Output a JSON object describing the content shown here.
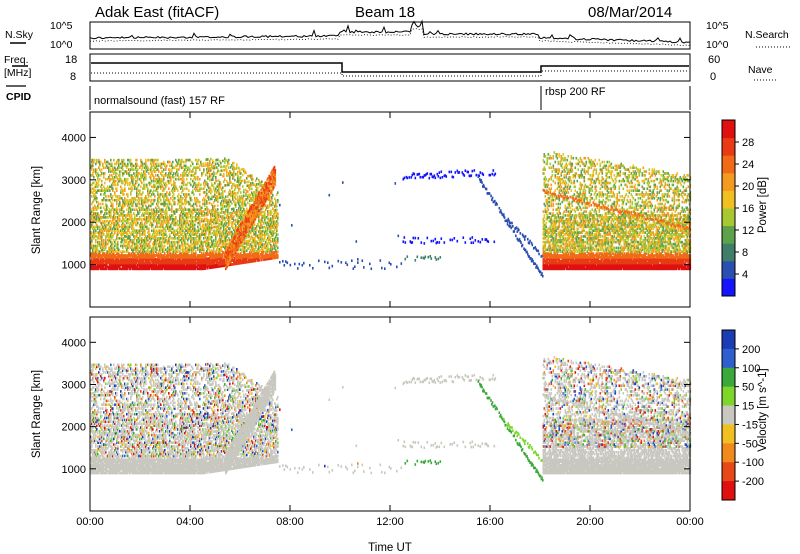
{
  "header": {
    "station": "Adak East (fitACF)",
    "beam": "Beam 18",
    "date": "08/Mar/2014"
  },
  "noise_panel": {
    "left_label": "N.Sky",
    "right_label": "N.Search",
    "left_ticks": [
      "10^5",
      "10^0"
    ],
    "right_ticks": [
      "10^5",
      "10^0"
    ]
  },
  "freq_panel": {
    "left_label_line1": "Freq.",
    "left_label_line2": "[MHz]",
    "right_label": "Nave",
    "left_ticks": [
      "18",
      "8"
    ],
    "right_ticks": [
      "60",
      "0"
    ]
  },
  "cpid_panel": {
    "label": "CPID",
    "mode1": "normalsound (fast) 157 RF",
    "mode2": "rbsp 200 RF"
  },
  "chart_data": [
    {
      "type": "heatmap",
      "ylabel": "Slant Range [km]",
      "y_ticks": [
        "1000",
        "2000",
        "3000",
        "4000"
      ],
      "y_tick_values": [
        1000,
        2000,
        3000,
        4000
      ],
      "ylim": [
        0,
        4600
      ],
      "x_ticks": [
        "00:00",
        "04:00",
        "08:00",
        "12:00",
        "16:00",
        "20:00",
        "00:00"
      ],
      "xlim_hours": [
        0,
        24
      ],
      "colorbar_label": "Power [dB]",
      "colorbar_ticks": [
        "4",
        "8",
        "12",
        "16",
        "20",
        "24",
        "28"
      ],
      "colorbar_range": [
        0,
        32
      ],
      "colorbar_colors": [
        "#1414ff",
        "#2a4fb0",
        "#3f7f6a",
        "#5ba24a",
        "#a8c832",
        "#f0c020",
        "#f59a20",
        "#f06a18",
        "#e83a14",
        "#e01010"
      ],
      "features": [
        {
          "name": "dawn-near-echo",
          "start_h": 0,
          "end_h": 7.5,
          "range_km": [
            900,
            1300
          ],
          "level": "high"
        },
        {
          "name": "evening-near-echo",
          "start_h": 18.1,
          "end_h": 24,
          "range_km": [
            900,
            1300
          ],
          "level": "high"
        },
        {
          "name": "midday-low-power-band",
          "start_h": 12.5,
          "end_h": 16,
          "range_km": [
            2900,
            3200
          ],
          "level": "low"
        }
      ]
    },
    {
      "type": "heatmap",
      "ylabel": "Slant Range [km]",
      "y_ticks": [
        "1000",
        "2000",
        "3000",
        "4000"
      ],
      "y_tick_values": [
        1000,
        2000,
        3000,
        4000
      ],
      "ylim": [
        0,
        4600
      ],
      "x_ticks": [
        "00:00",
        "04:00",
        "08:00",
        "12:00",
        "16:00",
        "20:00",
        "00:00"
      ],
      "xlim_hours": [
        0,
        24
      ],
      "xlabel": "Time UT",
      "colorbar_label": "Velocity [m s^-1]",
      "colorbar_ticks": [
        "200",
        "100",
        "50",
        "15",
        "-15",
        "-50",
        "-100",
        "-200"
      ],
      "colorbar_colors": [
        "#1a3cb4",
        "#2e5fd0",
        "#3ca83c",
        "#7ed62a",
        "#c8c8c0",
        "#f0c020",
        "#f08a1c",
        "#e84818",
        "#e01010"
      ]
    }
  ]
}
